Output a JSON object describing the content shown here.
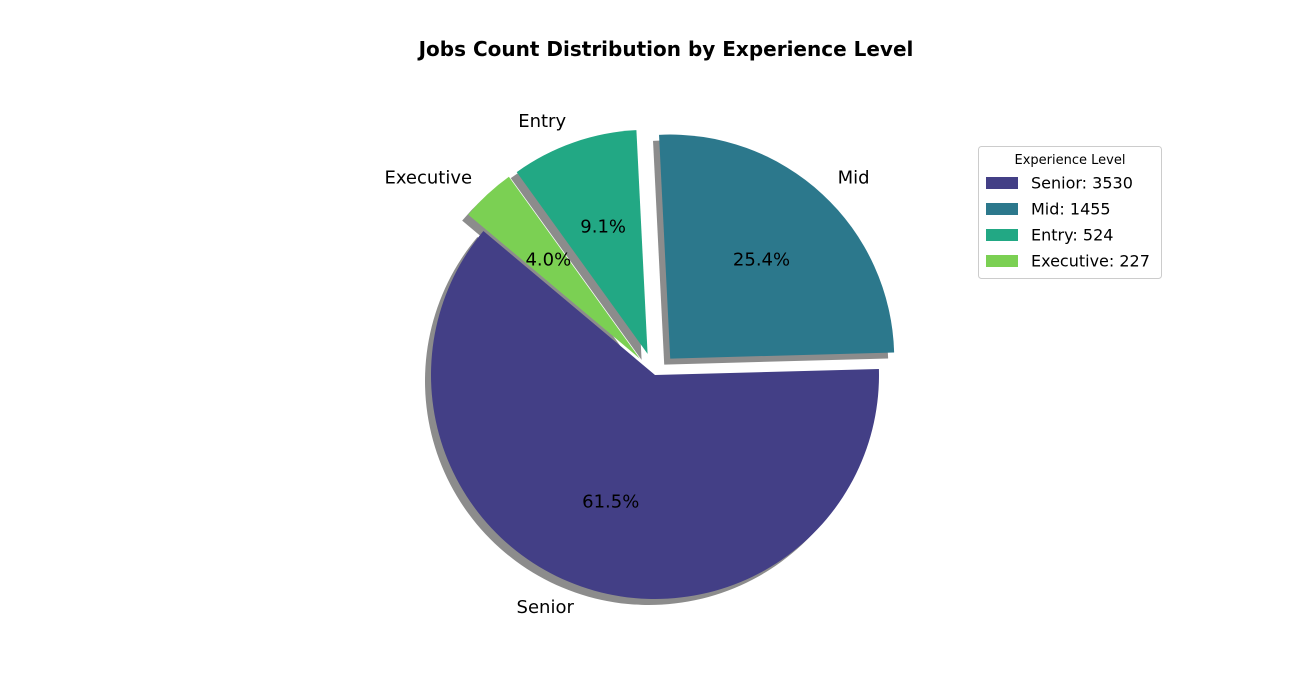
{
  "chart_data": {
    "type": "pie",
    "title": "Jobs Count Distribution by Experience Level",
    "categories": [
      "Senior",
      "Mid",
      "Entry",
      "Executive"
    ],
    "values": [
      3530,
      1455,
      524,
      227
    ],
    "percent_labels": [
      "61.5%",
      "25.4%",
      "9.1%",
      "4.0%"
    ],
    "colors": [
      "#433f86",
      "#2c788c",
      "#22a884",
      "#7bd053"
    ],
    "exploded": [
      false,
      true,
      true,
      true
    ],
    "shadow": true,
    "start_angle_deg": 140,
    "direction": "counterclockwise",
    "legend": {
      "title": "Experience Level",
      "placement": "right",
      "entries": [
        "Senior: 3530",
        "Mid: 1455",
        "Entry: 524",
        "Executive: 227"
      ]
    }
  }
}
